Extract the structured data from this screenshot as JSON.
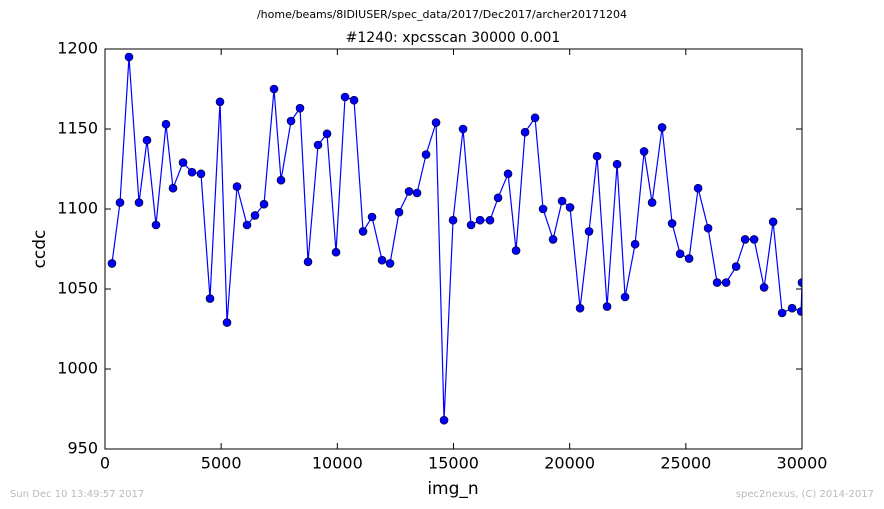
{
  "chart_data": {
    "type": "line",
    "suptitle": "/home/beams/8IDIUSER/spec_data/2017/Dec2017/archer20171204",
    "title": "#1240: xpcsscan 30000 0.001",
    "xlabel": "img_n",
    "ylabel": "ccdc",
    "footer_left": "Sun Dec 10 13:49:57 2017",
    "footer_right": "spec2nexus, (C) 2014-2017",
    "x": [
      300,
      646,
      1033,
      1464,
      1808,
      2195,
      2626,
      2927,
      3358,
      3745,
      4132,
      4520,
      4950,
      5252,
      5682,
      6113,
      6457,
      6845,
      7275,
      7576,
      8007,
      8394,
      8739,
      9169,
      9557,
      9944,
      10332,
      10719,
      11107,
      11494,
      11924,
      12268,
      12656,
      13086,
      13431,
      13818,
      14249,
      14593,
      14981,
      15411,
      15755,
      16143,
      16573,
      16918,
      17348,
      17693,
      18080,
      18511,
      18855,
      19286,
      19673,
      20017,
      20448,
      20835,
      21180,
      21610,
      22041,
      22385,
      22816,
      23203,
      23548,
      23978,
      24409,
      24753,
      25141,
      25528,
      25958,
      26346,
      26733,
      27164,
      27551,
      27939,
      28369,
      28757,
      29144,
      29574,
      29962,
      30000
    ],
    "series": [
      {
        "name": "ccdc",
        "color": "#0000ff",
        "values": [
          1066,
          1104,
          1195,
          1104,
          1143,
          1090,
          1153,
          1113,
          1129,
          1123,
          1122,
          1044,
          1167,
          1029,
          1114,
          1090,
          1096,
          1103,
          1175,
          1118,
          1155,
          1163,
          1067,
          1140,
          1147,
          1073,
          1170,
          1168,
          1086,
          1095,
          1068,
          1066,
          1098,
          1111,
          1110,
          1134,
          1154,
          968,
          1093,
          1150,
          1090,
          1093,
          1093,
          1107,
          1122,
          1074,
          1148,
          1157,
          1100,
          1081,
          1105,
          1101,
          1038,
          1086,
          1133,
          1039,
          1128,
          1045,
          1078,
          1136,
          1104,
          1151,
          1091,
          1072,
          1069,
          1113,
          1088,
          1054,
          1054,
          1064,
          1081,
          1081,
          1051,
          1092,
          1035,
          1038,
          1036,
          1054
        ]
      }
    ],
    "xlim": [
      0,
      30000
    ],
    "xticks": [
      0,
      5000,
      10000,
      15000,
      20000,
      25000,
      30000
    ],
    "ylim": [
      950,
      1200
    ],
    "yticks": [
      950,
      1000,
      1050,
      1100,
      1150,
      1200
    ],
    "grid": false
  }
}
